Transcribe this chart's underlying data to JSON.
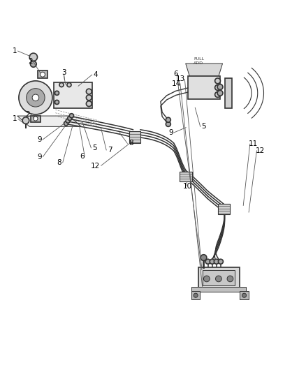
{
  "background_color": "#ffffff",
  "line_color": "#333333",
  "line_width": 1.2,
  "thin_line": 0.7,
  "fig_width": 4.38,
  "fig_height": 5.33,
  "dpi": 100
}
